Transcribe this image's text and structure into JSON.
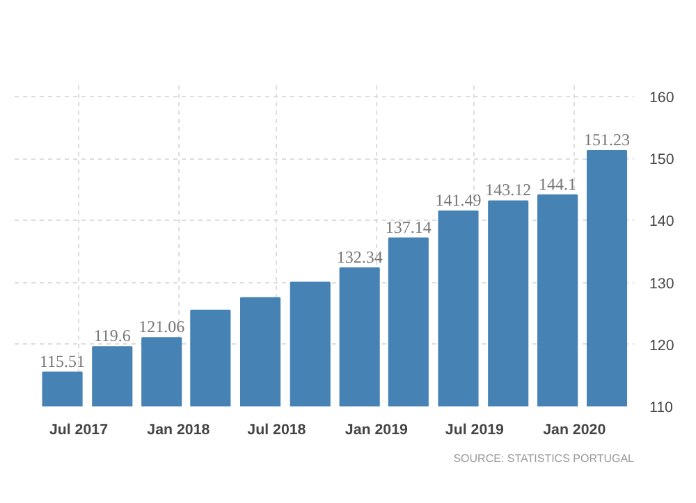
{
  "chart_data": {
    "type": "bar",
    "x": [
      "2017-06",
      "2017-09",
      "2017-12",
      "2018-03",
      "2018-06",
      "2018-09",
      "2018-12",
      "2019-03",
      "2019-06",
      "2019-09",
      "2019-12",
      "2020-03"
    ],
    "values": [
      115.51,
      119.6,
      121.06,
      125.5,
      127.5,
      130,
      132.34,
      137.14,
      141.49,
      143.12,
      144.1,
      151.23
    ],
    "value_labels": [
      "115.51",
      "119.6",
      "121.06",
      null,
      null,
      null,
      "132.34",
      "137.14",
      "141.49",
      "143.12",
      "144.1",
      "151.23"
    ],
    "color": "#4682b4",
    "xlim": [
      "2017-03-05",
      "2020-04-20"
    ],
    "xticks": [
      {
        "value": "2017-07",
        "label": "Jul 2017"
      },
      {
        "value": "2018-01",
        "label": "Jan 2018"
      },
      {
        "value": "2018-07",
        "label": "Jul 2018"
      },
      {
        "value": "2019-01",
        "label": "Jan 2019"
      },
      {
        "value": "2019-07",
        "label": "Jul 2019"
      },
      {
        "value": "2020-01",
        "label": "Jan 2020"
      }
    ],
    "ylim": [
      110,
      162
    ],
    "yticks": [
      110,
      120,
      130,
      140,
      150,
      160
    ],
    "grid": true,
    "annotations": [
      "SOURCE: STATISTICS PORTUGAL"
    ]
  }
}
